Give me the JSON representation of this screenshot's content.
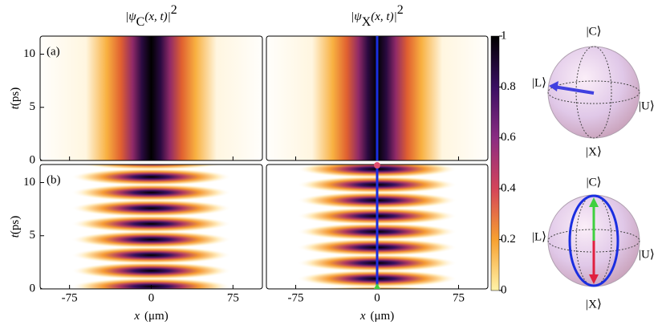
{
  "columns": [
    {
      "title": {
        "pre": "|ψ",
        "sub": "C",
        "post": "(x, t)|",
        "sup": "2"
      }
    },
    {
      "title": {
        "pre": "|ψ",
        "sub": "X",
        "post": "(x, t)|",
        "sup": "2"
      }
    }
  ],
  "panels": [
    {
      "label": "(a)"
    },
    {
      "label": "(b)"
    }
  ],
  "x_axis": {
    "label": "x",
    "unit": "(μm)",
    "lim": [
      -102,
      102
    ],
    "ticks": [
      -75,
      0,
      75
    ]
  },
  "y_axis": {
    "label": "t",
    "unit": "(ps)",
    "lim": [
      0,
      11.7
    ],
    "ticks": [
      0,
      5,
      10
    ]
  },
  "colorbar": {
    "lim": [
      0,
      1
    ],
    "ticks": [
      0,
      0.2,
      0.4,
      0.6,
      0.8,
      1
    ]
  },
  "bloch": {
    "states": [
      "|C⟩",
      "|X⟩",
      "|L⟩",
      "|U⟩"
    ]
  }
}
